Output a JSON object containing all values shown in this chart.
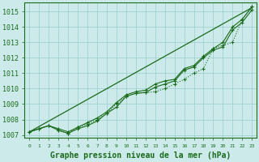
{
  "title": "Graphe pression niveau de la mer (hPa)",
  "x": [
    0,
    1,
    2,
    3,
    4,
    5,
    6,
    7,
    8,
    9,
    10,
    11,
    12,
    13,
    14,
    15,
    16,
    17,
    18,
    19,
    20,
    21,
    22,
    23
  ],
  "series_smooth": [
    1007.2,
    1007.55,
    1007.9,
    1008.25,
    1008.6,
    1008.95,
    1009.3,
    1009.65,
    1010.0,
    1010.35,
    1010.7,
    1011.05,
    1011.4,
    1011.75,
    1012.1,
    1012.45,
    1012.8,
    1013.15,
    1013.5,
    1013.85,
    1014.2,
    1014.55,
    1014.9,
    1015.25
  ],
  "series_dotted": [
    1007.2,
    1007.4,
    1007.6,
    1007.3,
    1007.1,
    1007.5,
    1007.7,
    1008.0,
    1008.4,
    1009.0,
    1009.5,
    1009.7,
    1009.75,
    1009.8,
    1010.0,
    1010.3,
    1010.6,
    1011.0,
    1011.3,
    1012.6,
    1012.8,
    1013.0,
    1014.5,
    1015.3
  ],
  "series_upper": [
    1007.2,
    1007.4,
    1007.6,
    1007.4,
    1007.2,
    1007.5,
    1007.8,
    1008.1,
    1008.5,
    1009.1,
    1009.6,
    1009.8,
    1009.9,
    1010.3,
    1010.5,
    1010.6,
    1011.3,
    1011.5,
    1012.1,
    1012.6,
    1013.0,
    1014.0,
    1014.5,
    1015.3
  ],
  "series_lower": [
    1007.2,
    1007.4,
    1007.6,
    1007.3,
    1007.1,
    1007.4,
    1007.6,
    1007.9,
    1008.4,
    1008.8,
    1009.5,
    1009.7,
    1009.75,
    1010.1,
    1010.3,
    1010.5,
    1011.2,
    1011.4,
    1012.0,
    1012.5,
    1012.7,
    1013.8,
    1014.3,
    1015.1
  ],
  "line_color": "#1a6b1a",
  "bg_color": "#cceaea",
  "grid_color": "#99cccc",
  "ylim_min": 1006.8,
  "ylim_max": 1015.6,
  "yticks": [
    1007,
    1008,
    1009,
    1010,
    1011,
    1012,
    1013,
    1014,
    1015
  ],
  "tick_fontsize": 6,
  "title_fontsize": 7
}
